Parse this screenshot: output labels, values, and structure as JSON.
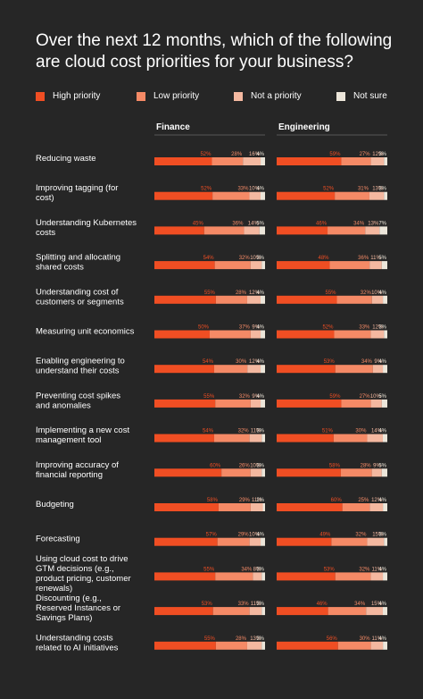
{
  "title": "Over the next 12 months, which of the following are cloud cost priorities for your business?",
  "colors": {
    "High priority": "#f04e23",
    "Low priority": "#f58a66",
    "Not a priority": "#f4b8a0",
    "Not sure": "#ece6da",
    "background": "#262626",
    "divider": "#555555"
  },
  "chart_data": {
    "type": "bar",
    "orientation": "horizontal-stacked-100",
    "legend_position": "top",
    "series": [
      {
        "name": "High priority"
      },
      {
        "name": "Low priority"
      },
      {
        "name": "Not a priority"
      },
      {
        "name": "Not sure"
      }
    ],
    "groups": [
      "Finance",
      "Engineering"
    ],
    "categories": [
      {
        "label": "Reducing waste",
        "finance": [
          52,
          28,
          16,
          4
        ],
        "engineering": [
          59,
          27,
          12,
          3
        ]
      },
      {
        "label": "Improving tagging (for cost)",
        "finance": [
          52,
          33,
          10,
          4
        ],
        "engineering": [
          52,
          31,
          13,
          3
        ]
      },
      {
        "label": "Understanding Kubernetes costs",
        "finance": [
          45,
          36,
          14,
          5
        ],
        "engineering": [
          46,
          34,
          13,
          7
        ]
      },
      {
        "label": "Splitting and allocating shared costs",
        "finance": [
          54,
          32,
          10,
          3
        ],
        "engineering": [
          48,
          36,
          11,
          5
        ]
      },
      {
        "label": "Understanding cost of customers or segments",
        "finance": [
          55,
          28,
          12,
          4
        ],
        "engineering": [
          55,
          32,
          10,
          4
        ]
      },
      {
        "label": "Measuring unit economics",
        "finance": [
          50,
          37,
          9,
          4
        ],
        "engineering": [
          52,
          33,
          12,
          3
        ]
      },
      {
        "label": "Enabling engineering to understand their costs",
        "finance": [
          54,
          30,
          12,
          4
        ],
        "engineering": [
          53,
          34,
          9,
          4
        ]
      },
      {
        "label": "Preventing cost spikes and anomalies",
        "finance": [
          55,
          32,
          9,
          4
        ],
        "engineering": [
          59,
          27,
          10,
          5
        ]
      },
      {
        "label": "Implementing a new cost management tool",
        "finance": [
          54,
          32,
          11,
          3
        ],
        "engineering": [
          51,
          30,
          14,
          4
        ]
      },
      {
        "label": "Improving accuracy of financial reporting",
        "finance": [
          60,
          26,
          10,
          3
        ],
        "engineering": [
          58,
          28,
          9,
          5
        ]
      },
      {
        "label": "Budgeting",
        "finance": [
          58,
          29,
          11,
          2
        ],
        "engineering": [
          60,
          25,
          12,
          4
        ]
      },
      {
        "label": "Forecasting",
        "finance": [
          57,
          29,
          10,
          4
        ],
        "engineering": [
          49,
          32,
          15,
          3
        ]
      },
      {
        "label": "Using cloud cost to drive GTM decisions (e.g., product pricing, customer renewals)",
        "finance": [
          55,
          34,
          8,
          3
        ],
        "engineering": [
          53,
          32,
          11,
          4
        ]
      },
      {
        "label": "Discounting (e.g., Reserved Instances or Savings Plans)",
        "finance": [
          53,
          33,
          11,
          3
        ],
        "engineering": [
          46,
          34,
          15,
          4
        ]
      },
      {
        "label": "Understanding costs related to AI initiatives",
        "finance": [
          55,
          28,
          13,
          3
        ],
        "engineering": [
          56,
          30,
          11,
          4
        ]
      }
    ]
  }
}
